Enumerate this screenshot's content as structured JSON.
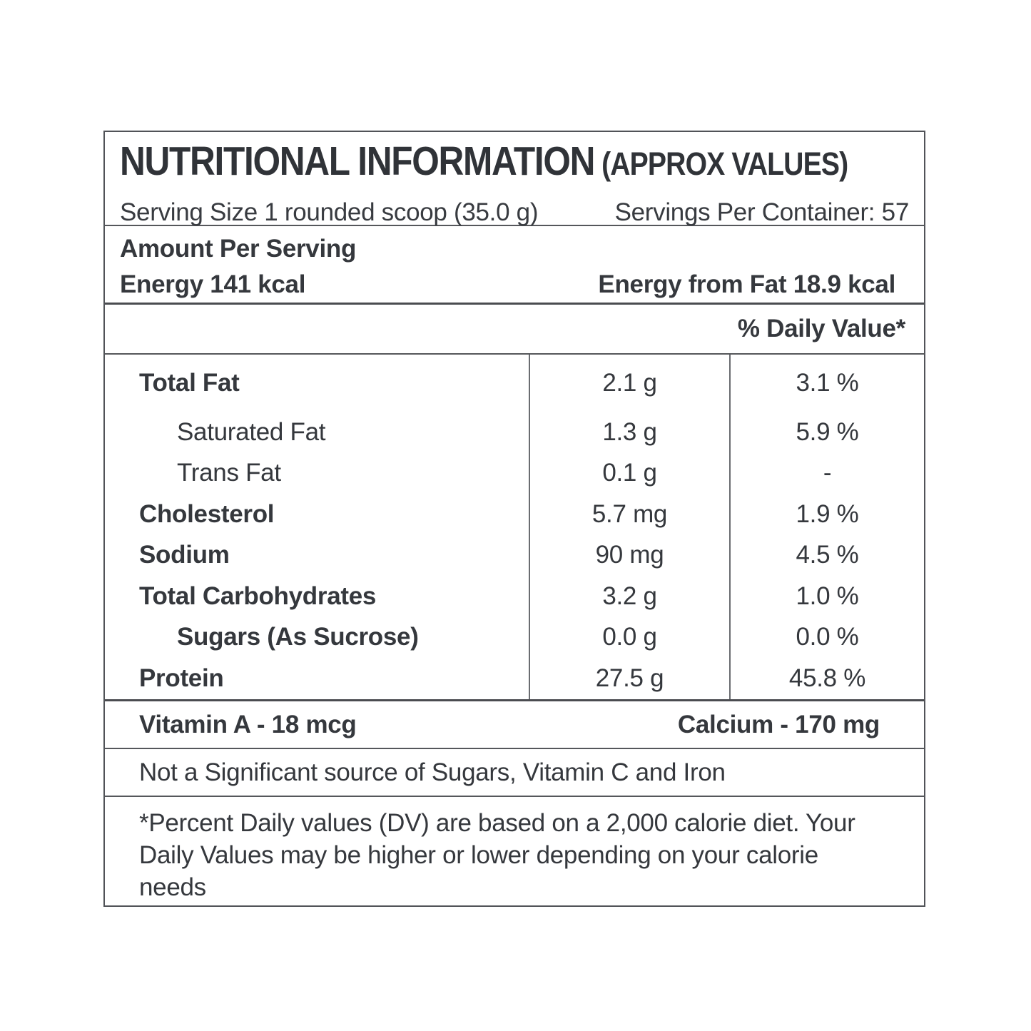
{
  "label": {
    "title": "NUTRITIONAL INFORMATION",
    "title_suffix": " (APPROX VALUES)",
    "serving_size": "Serving Size 1 rounded scoop (35.0 g)",
    "servings_per_container": "Servings Per Container: 57",
    "amount_per_serving": "Amount Per Serving",
    "energy": "Energy 141 kcal",
    "energy_from_fat": "Energy from Fat 18.9 kcal",
    "daily_value_header": "% Daily Value*",
    "rows": [
      {
        "name": "Total Fat",
        "amount": "2.1 g",
        "dv": "3.1 %",
        "bold": true,
        "indent": false
      },
      {
        "name": "Saturated Fat",
        "amount": "1.3 g",
        "dv": "5.9 %",
        "bold": false,
        "indent": true
      },
      {
        "name": "Trans Fat",
        "amount": "0.1 g",
        "dv": "-",
        "bold": false,
        "indent": true
      },
      {
        "name": "Cholesterol",
        "amount": "5.7 mg",
        "dv": "1.9 %",
        "bold": true,
        "indent": false
      },
      {
        "name": "Sodium",
        "amount": "90 mg",
        "dv": "4.5 %",
        "bold": true,
        "indent": false
      },
      {
        "name": "Total Carbohydrates",
        "amount": "3.2 g",
        "dv": "1.0 %",
        "bold": true,
        "indent": false
      },
      {
        "name": "Sugars (As Sucrose)",
        "amount": "0.0 g",
        "dv": "0.0 %",
        "bold": true,
        "indent": true
      },
      {
        "name": "Protein",
        "amount": "27.5 g",
        "dv": "45.8 %",
        "bold": true,
        "indent": false
      }
    ],
    "vitamin_a": "Vitamin A - 18 mcg",
    "calcium": "Calcium - 170 mg",
    "not_significant": "Not a Significant source of Sugars, Vitamin C and Iron",
    "footnote": "*Percent Daily values (DV) are based on a 2,000 calorie diet. Your Daily Values may be higher or lower depending on your calorie needs",
    "colors": {
      "text": "#35383d",
      "title": "#303338",
      "border": "#55575b",
      "thick_border": "#4a4c50",
      "background": "#ffffff"
    }
  }
}
